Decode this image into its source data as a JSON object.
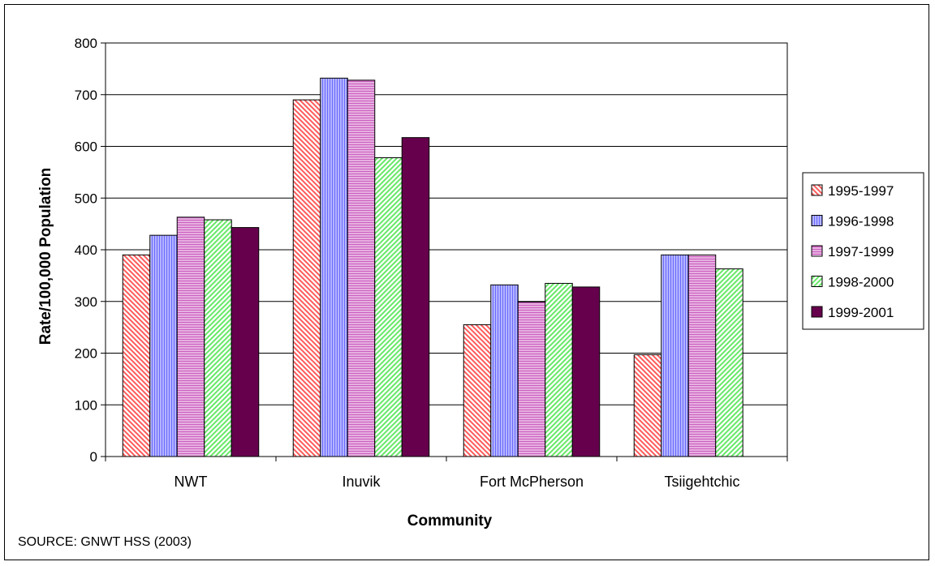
{
  "chart_data": {
    "type": "bar",
    "title": "",
    "xlabel": "Community",
    "ylabel": "Rate/100,000 Population",
    "ylim": [
      0,
      800
    ],
    "yticks": [
      "0",
      "100",
      "200",
      "300",
      "400",
      "500",
      "600",
      "700",
      "800"
    ],
    "grid": "horizontal",
    "legend_position": "right",
    "categories": [
      "NWT",
      "Inuvik",
      "Fort McPherson",
      "Tsiigehtchic"
    ],
    "series": [
      {
        "name": "1995-1997",
        "values": [
          390,
          690,
          255,
          197
        ],
        "color": "#ff5a5a",
        "pattern": "diag-down"
      },
      {
        "name": "1996-1998",
        "values": [
          428,
          732,
          332,
          390
        ],
        "color": "#6a6aff",
        "pattern": "vertical"
      },
      {
        "name": "1997-1999",
        "values": [
          463,
          728,
          299,
          390
        ],
        "color": "#cc5fc0",
        "pattern": "horizontal"
      },
      {
        "name": "1998-2000",
        "values": [
          458,
          578,
          335,
          363
        ],
        "color": "#66e866",
        "pattern": "diag-up"
      },
      {
        "name": "1999-2001",
        "values": [
          443,
          617,
          328,
          null
        ],
        "color": "#66004d",
        "pattern": "solid"
      }
    ],
    "source_note": "SOURCE:  GNWT HSS (2003)"
  }
}
